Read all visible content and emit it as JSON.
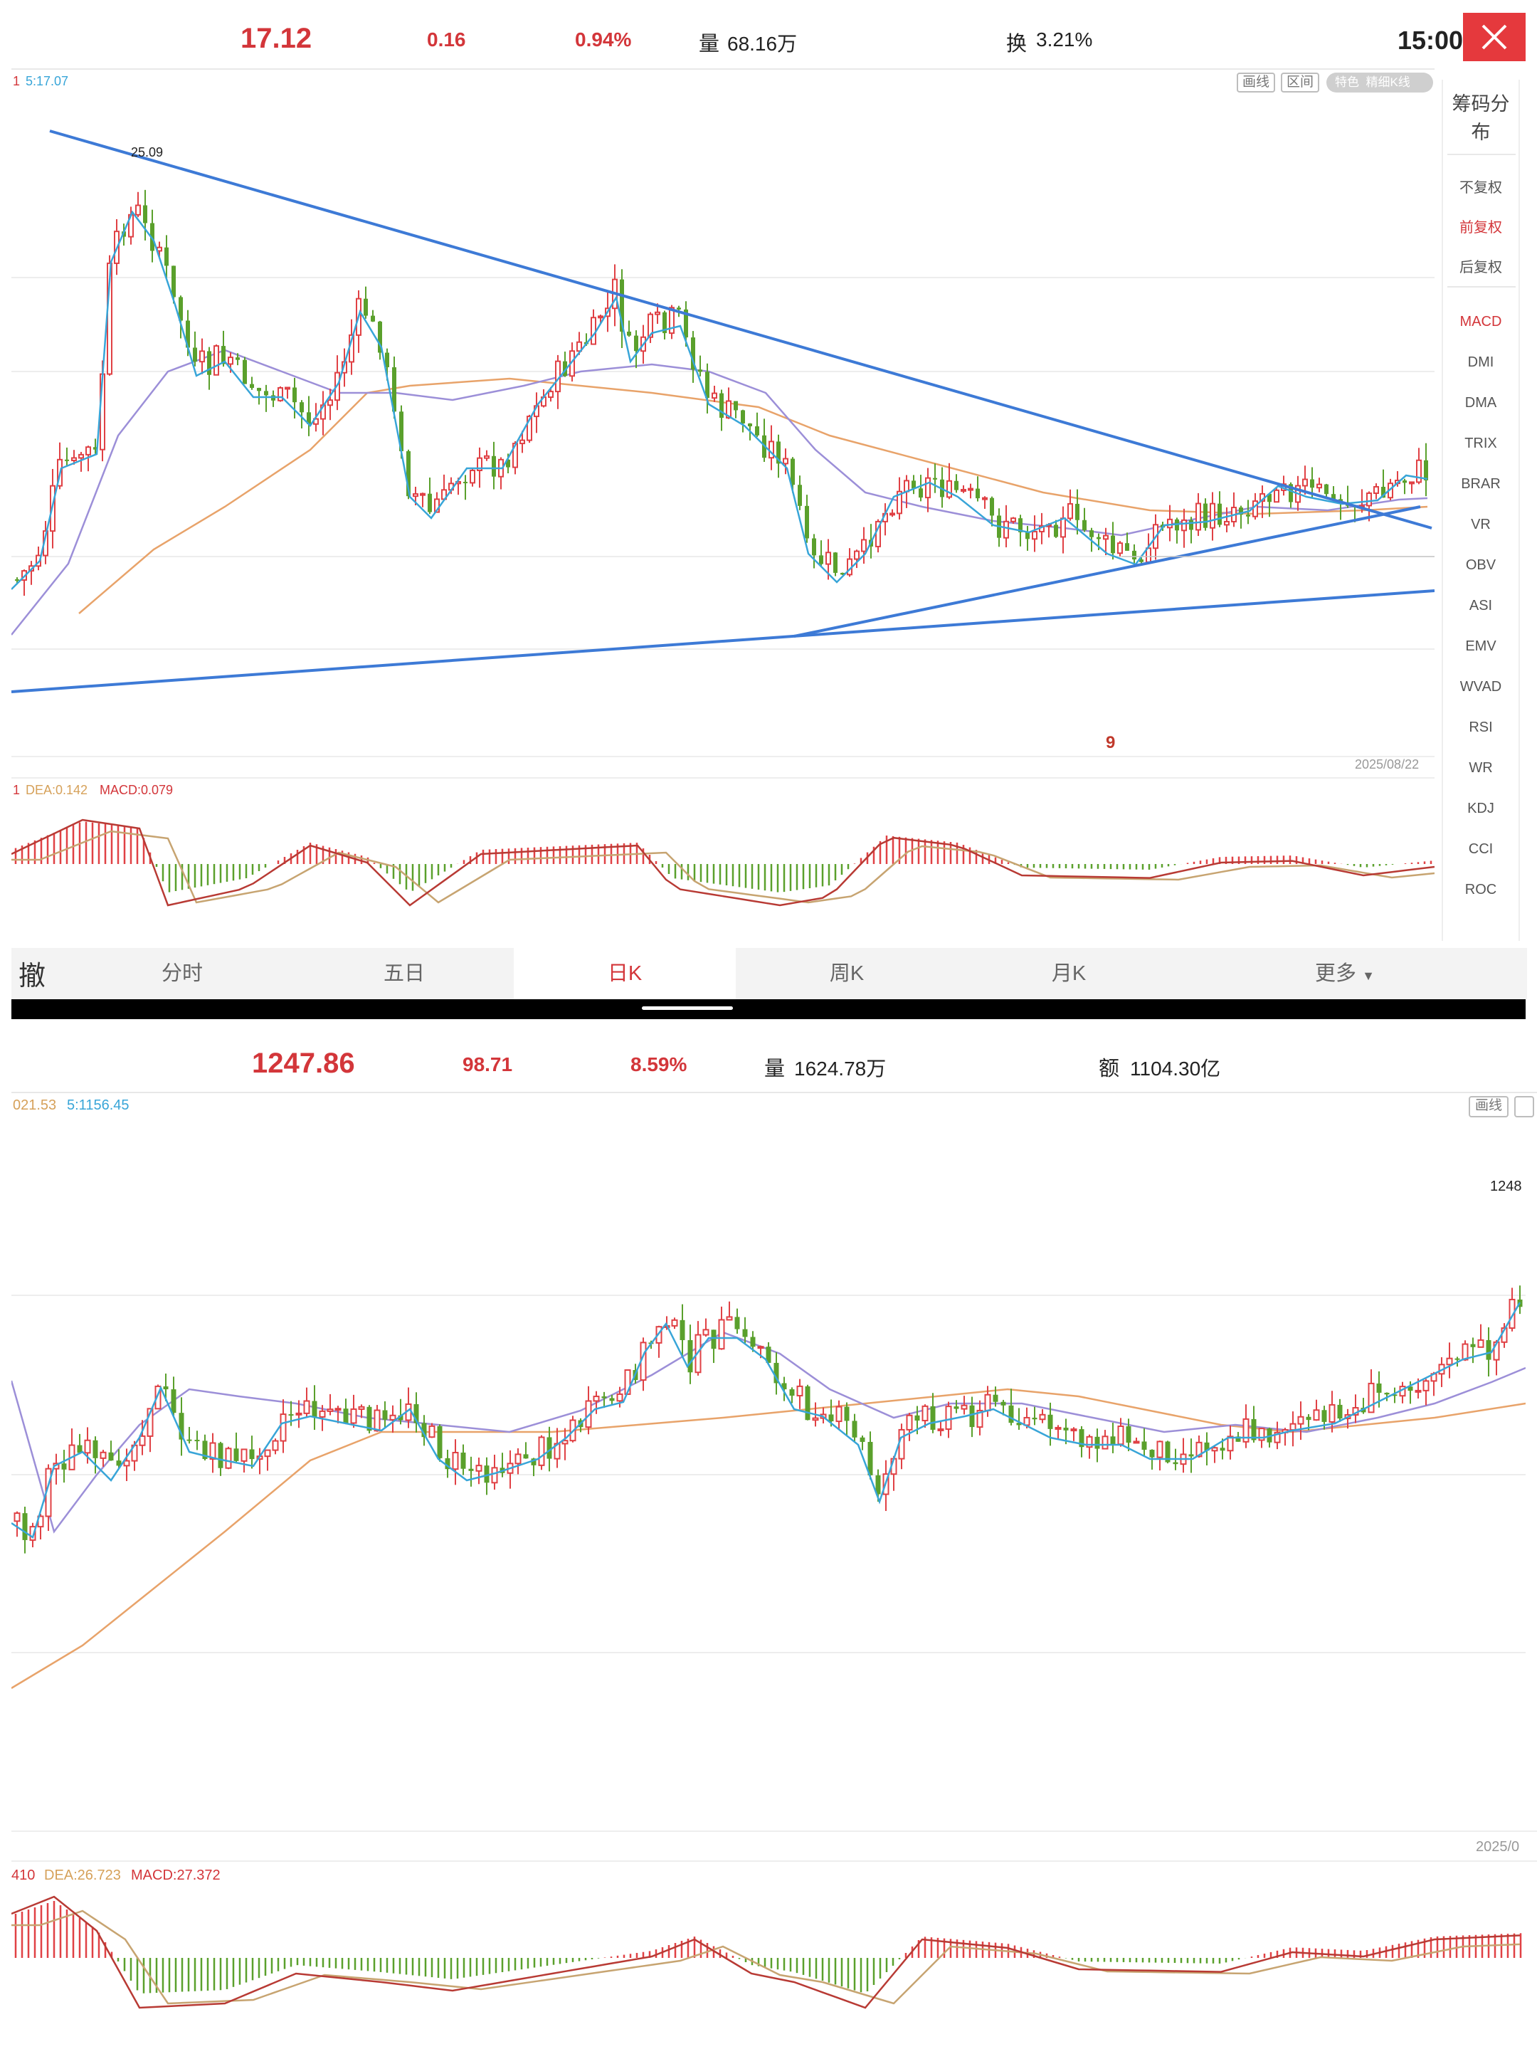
{
  "colors": {
    "up": "#e04145",
    "down": "#5aa02c",
    "ma5": "#38a5d8",
    "ma10": "#9c8fd8",
    "ma20": "#e8a36a",
    "trend": "#3d7ad6",
    "accent": "#e5393d"
  },
  "top_panel": {
    "header": {
      "price": "17.12",
      "change": "0.16",
      "change_pct": "0.94%",
      "volume_label": "量",
      "volume_value": "68.16万",
      "turnover_label": "换",
      "turnover_value": "3.21%",
      "time": "15:00"
    },
    "ma_legend": {
      "prefix": "1",
      "ma5": "5:17.07"
    },
    "toolbar": {
      "draw": "画线",
      "range": "区间",
      "special": "特色",
      "kline_type": "精细K线"
    },
    "high_label": "25.09",
    "date_label": "2025/08/22",
    "marker": "9",
    "macd_legend": {
      "prefix": "1",
      "dea": "DEA:0.142",
      "macd": "MACD:0.079"
    },
    "sidebar": {
      "chip_line1": "筹码分",
      "chip_line2": "布",
      "items": [
        "不复权",
        "前复权",
        "后复权",
        "MACD",
        "DMI",
        "DMA",
        "TRIX",
        "BRAR",
        "VR",
        "OBV",
        "ASI",
        "EMV",
        "WVAD",
        "RSI",
        "WR",
        "KDJ",
        "CCI",
        "ROC"
      ]
    },
    "tabs": {
      "cancel": "撤",
      "items": [
        "分时",
        "五日",
        "日K",
        "周K",
        "月K",
        "更多"
      ],
      "active_index": 2
    }
  },
  "bottom_panel": {
    "header": {
      "price": "1247.86",
      "change": "98.71",
      "change_pct": "8.59%",
      "volume_label": "量",
      "volume_value": "1624.78万",
      "amount_label": "额",
      "amount_value": "1104.30亿"
    },
    "ma_legend": {
      "prefix": "021.53",
      "ma5": "5:1156.45"
    },
    "toolbar": {
      "draw": "画线"
    },
    "right_label": "1248",
    "date_label": "2025/0",
    "macd_legend": {
      "prefix": "410",
      "dea": "DEA:26.723",
      "macd": "MACD:27.372"
    }
  }
}
